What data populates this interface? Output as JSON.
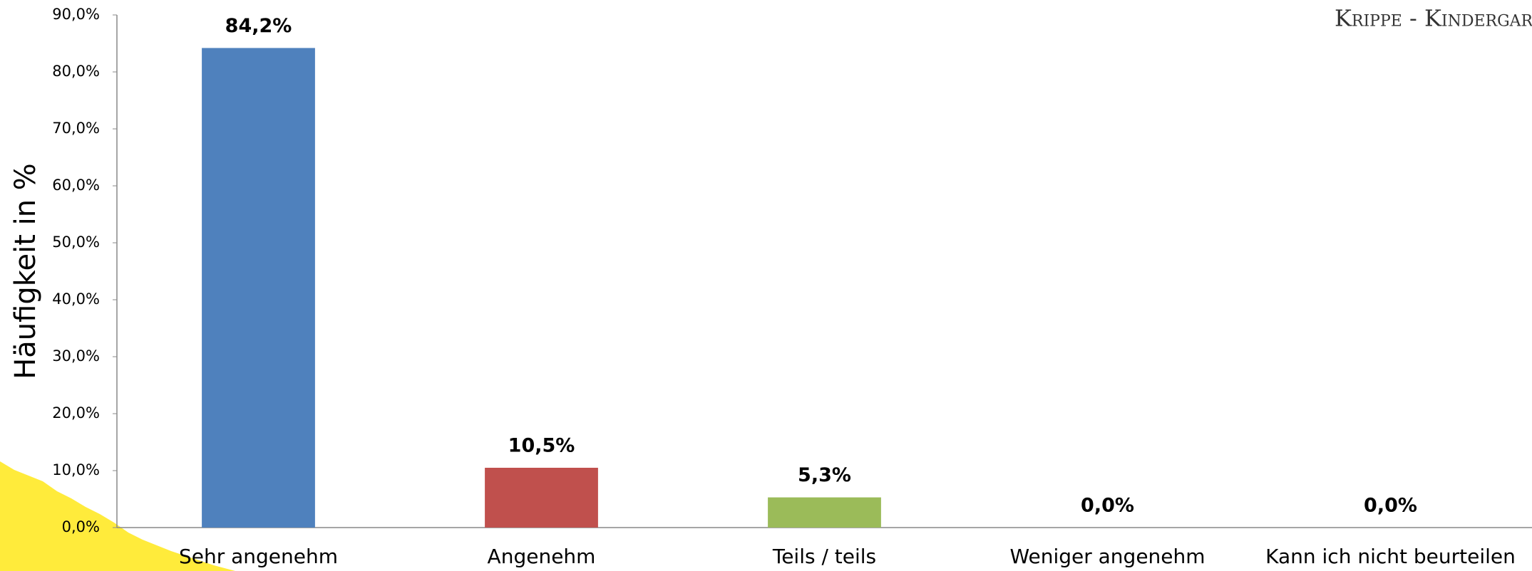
{
  "chart_data": {
    "type": "bar",
    "corner_label": "Krippe - Kindergarten",
    "y_label": "Häufigkeit in %",
    "categories": [
      "Sehr angenehm",
      "Angenehm",
      "Teils / teils",
      "Weniger angenehm",
      "Kann ich nicht beurteilen"
    ],
    "values": [
      84.2,
      10.5,
      5.3,
      0,
      0
    ],
    "value_labels": [
      "84,2%",
      "10,5%",
      "5,3%",
      "0,0%",
      "0,0%"
    ],
    "colors": [
      "#4f81bd",
      "#c0504d",
      "#9bbb59",
      "#8064a2",
      "#4bacc6"
    ],
    "ylim": [
      0,
      90
    ],
    "yticks": [
      {
        "value": 0,
        "label": "0,0%"
      },
      {
        "value": 10,
        "label": "10,0%"
      },
      {
        "value": 20,
        "label": "20,0%"
      },
      {
        "value": 30,
        "label": "30,0%"
      },
      {
        "value": 40,
        "label": "40,0%"
      },
      {
        "value": 50,
        "label": "50,0%"
      },
      {
        "value": 60,
        "label": "60,0%"
      },
      {
        "value": 70,
        "label": "70,0%"
      },
      {
        "value": 80,
        "label": "80,0%"
      },
      {
        "value": 90,
        "label": "90,0%"
      }
    ],
    "grid": false
  }
}
